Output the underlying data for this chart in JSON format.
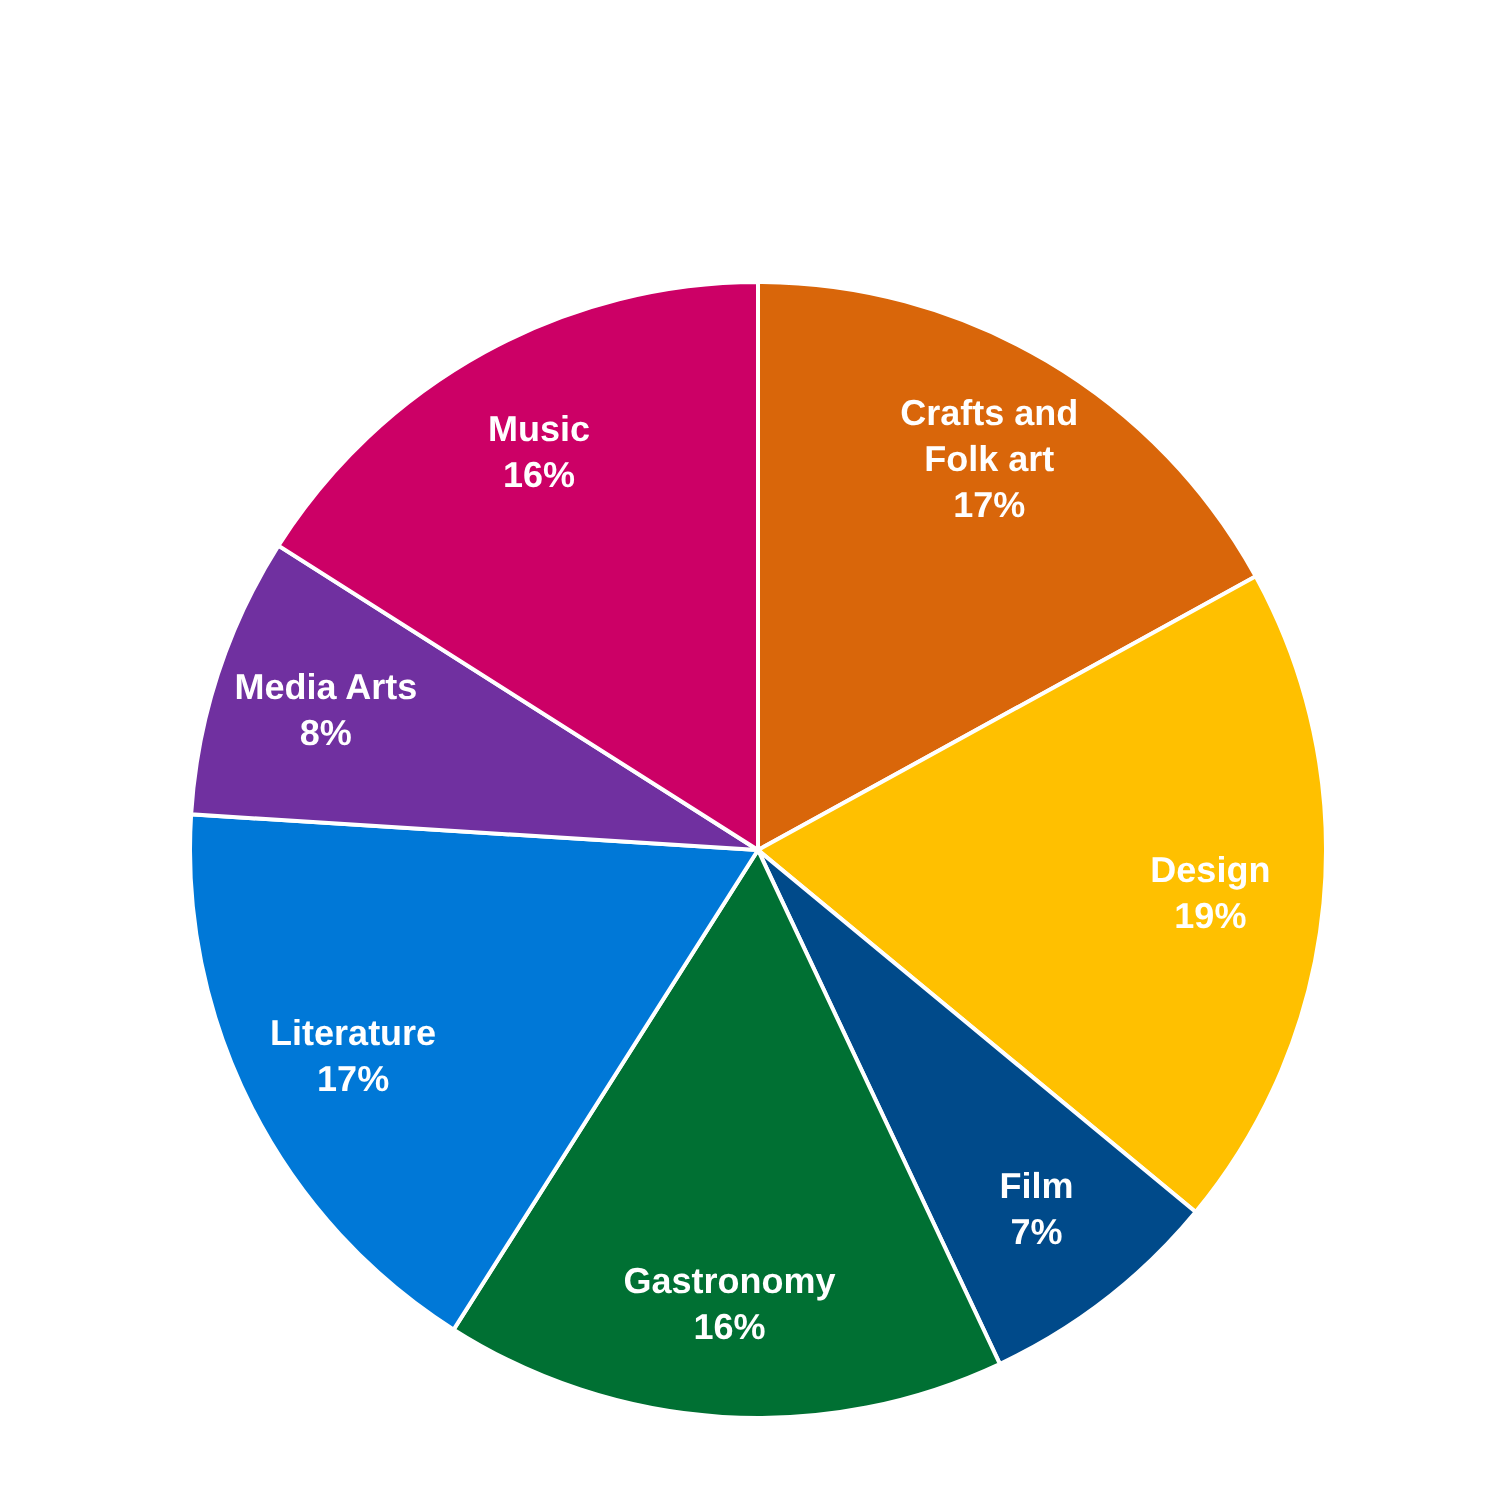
{
  "chart_data": {
    "type": "pie",
    "categories": [
      "Crafts and Folk art",
      "Design",
      "Film",
      "Gastronomy",
      "Literature",
      "Media Arts",
      "Music"
    ],
    "values": [
      17,
      19,
      7,
      16,
      17,
      8,
      16
    ],
    "value_labels": [
      "17%",
      "19%",
      "7%",
      "16%",
      "17%",
      "8%",
      "16%"
    ],
    "colors": [
      "#d9660a",
      "#ffc000",
      "#004a8a",
      "#007033",
      "#0078d7",
      "#7030a0",
      "#cc0066"
    ],
    "legend": false
  }
}
